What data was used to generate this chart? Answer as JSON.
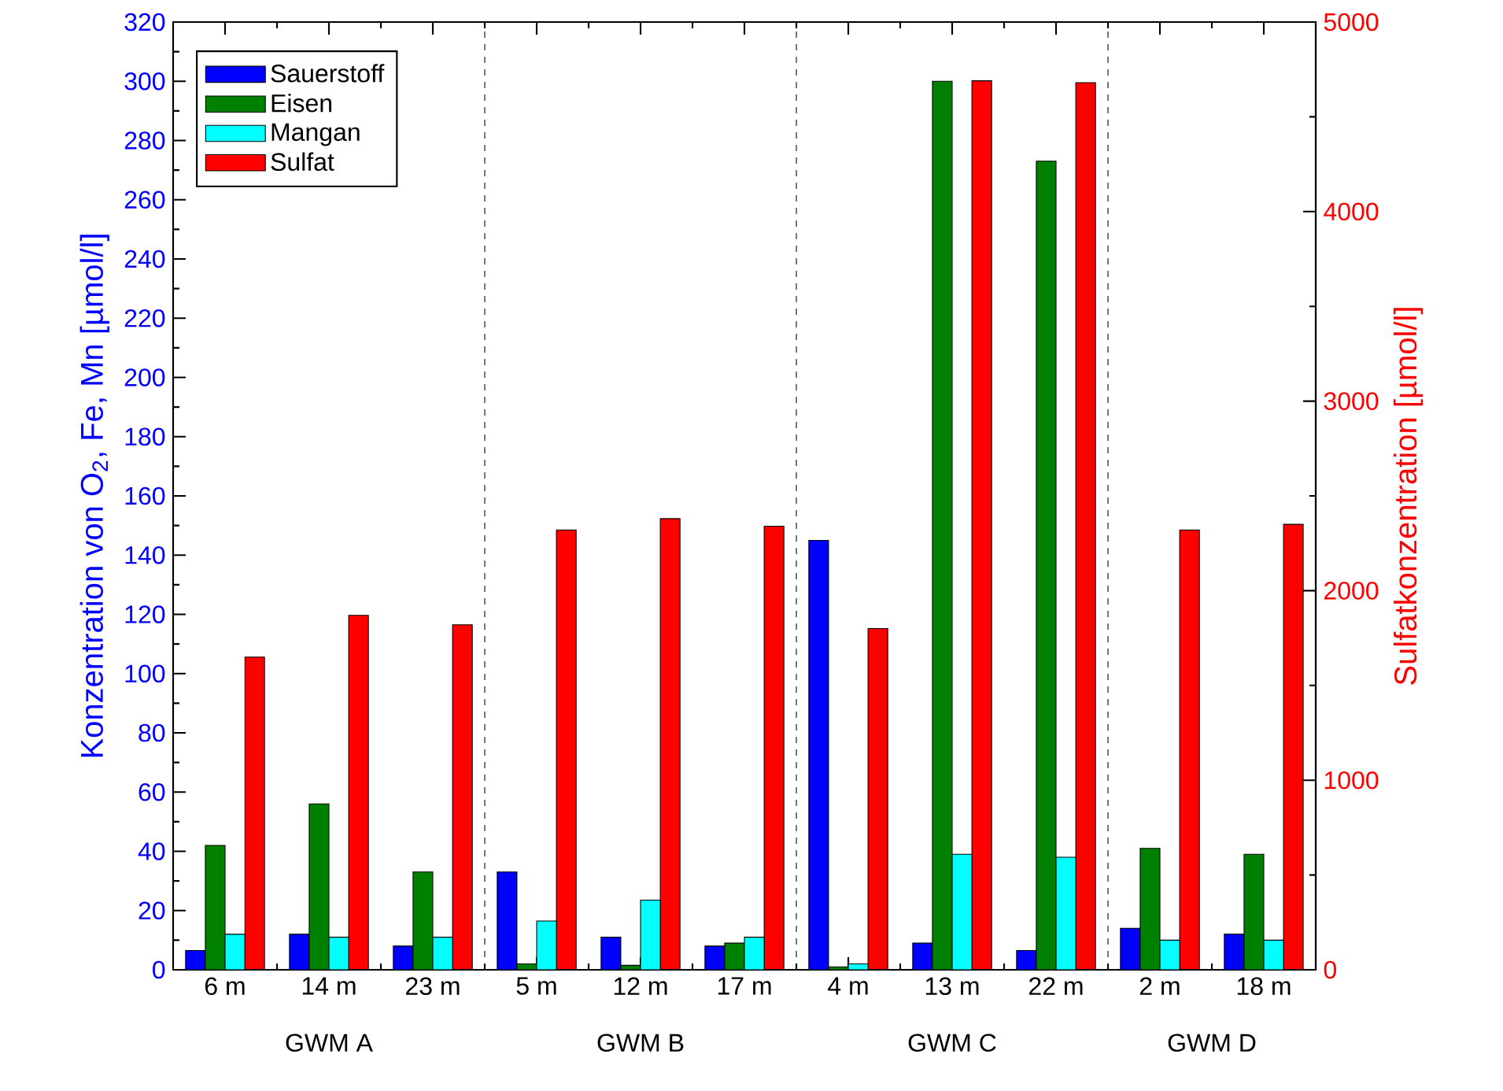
{
  "chart_data": {
    "type": "bar",
    "ylabel": "Konzentration von O$_{2}$, Fe, Mn [µmol/l]",
    "y2label": "Sulfatkonzentration [µmol/l]",
    "categories": [
      "6 m",
      "14 m",
      "23 m",
      "5 m",
      "12 m",
      "17 m",
      "4 m",
      "13 m",
      "22 m",
      "2 m",
      "18 m"
    ],
    "series": [
      {
        "name": "Sauerstoff",
        "color": "#0000ff",
        "values": [
          6.5,
          12,
          8,
          33,
          11,
          8,
          145,
          9,
          6.5,
          14,
          12
        ]
      },
      {
        "name": "Eisen",
        "color": "#008000",
        "values": [
          42,
          56,
          33,
          2,
          1.5,
          9,
          1,
          300,
          273,
          41,
          39
        ]
      },
      {
        "name": "Mangan",
        "color": "#00ffff",
        "values": [
          12,
          11,
          11,
          16.5,
          23.5,
          11,
          2,
          39,
          38,
          10,
          10
        ]
      },
      {
        "name": "Sulfat",
        "color": "#ff0000",
        "axis": "y2",
        "values": [
          1650,
          1870,
          1820,
          2320,
          2380,
          2340,
          1800,
          4690,
          4680,
          2320,
          2350
        ]
      }
    ],
    "ylim": [
      0,
      320
    ],
    "yticks": [
      0,
      20,
      40,
      60,
      80,
      100,
      120,
      140,
      160,
      180,
      200,
      220,
      240,
      260,
      280,
      300,
      320
    ],
    "y2lim": [
      0,
      5000
    ],
    "y2ticks": [
      0,
      1000,
      2000,
      3000,
      4000,
      5000
    ],
    "legend": "top left",
    "annotations": [
      "GWM A",
      "GWM B",
      "GWM C",
      "GWM D"
    ]
  }
}
